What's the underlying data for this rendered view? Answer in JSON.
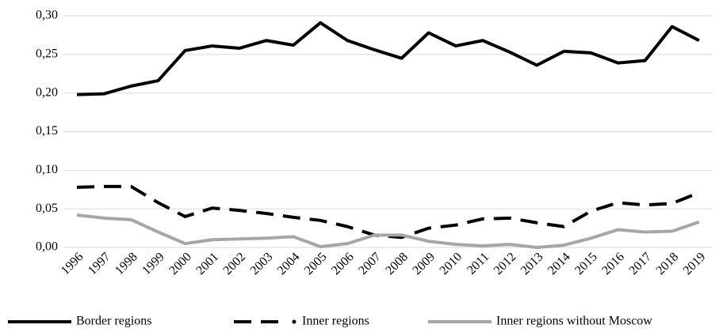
{
  "chart_data": {
    "type": "line",
    "categories": [
      "1996",
      "1997",
      "1998",
      "1999",
      "2000",
      "2001",
      "2002",
      "2003",
      "2004",
      "2005",
      "2006",
      "2007",
      "2008",
      "2009",
      "2010",
      "2011",
      "2012",
      "2013",
      "2014",
      "2015",
      "2016",
      "2017",
      "2018",
      "2019"
    ],
    "series": [
      {
        "name": "Border regions",
        "color": "#000000",
        "style": "solid",
        "values": [
          0.198,
          0.199,
          0.209,
          0.216,
          0.255,
          0.261,
          0.258,
          0.268,
          0.262,
          0.291,
          0.268,
          0.256,
          0.245,
          0.278,
          0.261,
          0.268,
          0.253,
          0.236,
          0.254,
          0.252,
          0.239,
          0.242,
          0.286,
          0.268
        ]
      },
      {
        "name": "Inner regions",
        "color": "#000000",
        "style": "dashed",
        "values": [
          0.078,
          0.079,
          0.079,
          0.058,
          0.04,
          0.051,
          0.048,
          0.044,
          0.039,
          0.035,
          0.027,
          0.016,
          0.013,
          0.025,
          0.029,
          0.037,
          0.038,
          0.032,
          0.027,
          0.047,
          0.058,
          0.055,
          0.057,
          0.071
        ]
      },
      {
        "name": "Inner regions without Moscow",
        "color": "#a6a6a6",
        "style": "solid",
        "values": [
          0.042,
          0.038,
          0.036,
          0.02,
          0.005,
          0.01,
          0.011,
          0.012,
          0.014,
          0.001,
          0.005,
          0.016,
          0.016,
          0.008,
          0.004,
          0.002,
          0.004,
          0.0,
          0.003,
          0.012,
          0.023,
          0.02,
          0.021,
          0.033
        ]
      }
    ],
    "ylim": [
      0,
      0.3
    ],
    "yticks": [
      {
        "value": 0,
        "label": "0,00"
      },
      {
        "value": 0.05,
        "label": "0,05"
      },
      {
        "value": 0.1,
        "label": "0,10"
      },
      {
        "value": 0.15,
        "label": "0,15"
      },
      {
        "value": 0.2,
        "label": "0,20"
      },
      {
        "value": 0.25,
        "label": "0,25"
      },
      {
        "value": 0.3,
        "label": "0,30"
      }
    ],
    "grid": true,
    "legend": "bottom"
  }
}
